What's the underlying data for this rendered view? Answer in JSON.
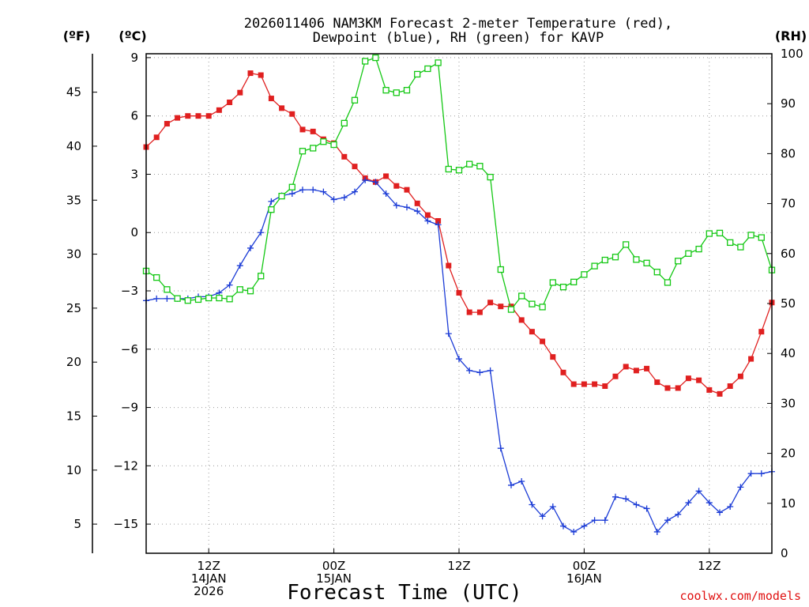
{
  "chart_data": {
    "type": "line",
    "title_line1": "2026011406 NAM3KM Forecast 2-meter Temperature (red),",
    "title_line2": "Dewpoint (blue), RH (green) for KAVP",
    "xlabel": "Forecast Time (UTC)",
    "units": {
      "fahrenheit": "(ºF)",
      "celsius": "(ºC)",
      "rh": "(RH)"
    },
    "x_range_hours": [
      0,
      60
    ],
    "c_range": [
      -16.5,
      9.2
    ],
    "rh_range": [
      0,
      100
    ],
    "f_ticks": [
      5,
      10,
      15,
      20,
      25,
      30,
      35,
      40,
      45
    ],
    "c_ticks": [
      -15,
      -12,
      -9,
      -6,
      -3,
      0,
      3,
      6,
      9
    ],
    "rh_ticks": [
      0,
      10,
      20,
      30,
      40,
      50,
      60,
      70,
      80,
      90,
      100
    ],
    "x_ticks": [
      {
        "hour": 6,
        "lines": [
          "12Z",
          "14JAN",
          "2026"
        ]
      },
      {
        "hour": 18,
        "lines": [
          "00Z",
          "15JAN"
        ]
      },
      {
        "hour": 30,
        "lines": [
          "12Z"
        ]
      },
      {
        "hour": 42,
        "lines": [
          "00Z",
          "16JAN"
        ]
      },
      {
        "hour": 54,
        "lines": [
          "12Z"
        ]
      }
    ],
    "series": [
      {
        "name": "2-meter Temperature",
        "unit": "C",
        "color": "#e02020",
        "marker": "filled-square",
        "x": [
          0,
          1,
          2,
          3,
          4,
          5,
          6,
          7,
          8,
          9,
          10,
          11,
          12,
          13,
          14,
          15,
          16,
          17,
          18,
          19,
          20,
          21,
          22,
          23,
          24,
          25,
          26,
          27,
          28,
          29,
          30,
          31,
          32,
          33,
          34,
          35,
          36,
          37,
          38,
          39,
          40,
          41,
          42,
          43,
          44,
          45,
          46,
          47,
          48,
          49,
          50,
          51,
          52,
          53,
          54,
          55,
          56,
          57,
          58,
          59,
          60
        ],
        "values": [
          4.4,
          4.9,
          5.6,
          5.9,
          6.0,
          6.0,
          6.0,
          6.3,
          6.7,
          7.2,
          8.2,
          8.1,
          6.9,
          6.4,
          6.1,
          5.3,
          5.2,
          4.8,
          4.6,
          3.9,
          3.4,
          2.8,
          2.6,
          2.9,
          2.4,
          2.2,
          1.5,
          0.9,
          0.6,
          -1.7,
          -3.1,
          -4.1,
          -4.1,
          -3.6,
          -3.8,
          -3.8,
          -4.5,
          -5.1,
          -5.6,
          -6.4,
          -7.2,
          -7.8,
          -7.8,
          -7.8,
          -7.9,
          -7.4,
          -6.9,
          -7.1,
          -7.0,
          -7.7,
          -8.0,
          -8.0,
          -7.5,
          -7.6,
          -8.1,
          -8.3,
          -7.9,
          -7.4,
          -6.5,
          -5.1,
          -3.6
        ]
      },
      {
        "name": "Dewpoint",
        "unit": "C",
        "color": "#1c3cd6",
        "marker": "plus",
        "x": [
          0,
          1,
          2,
          3,
          4,
          5,
          6,
          7,
          8,
          9,
          10,
          11,
          12,
          13,
          14,
          15,
          16,
          17,
          18,
          19,
          20,
          21,
          22,
          23,
          24,
          25,
          26,
          27,
          28,
          29,
          30,
          31,
          32,
          33,
          34,
          35,
          36,
          37,
          38,
          39,
          40,
          41,
          42,
          43,
          44,
          45,
          46,
          47,
          48,
          49,
          50,
          51,
          52,
          53,
          54,
          55,
          56,
          57,
          58,
          59,
          60
        ],
        "values": [
          -3.5,
          -3.4,
          -3.4,
          -3.4,
          -3.4,
          -3.3,
          -3.3,
          -3.1,
          -2.7,
          -1.7,
          -0.8,
          0.0,
          1.6,
          1.9,
          2.0,
          2.2,
          2.2,
          2.1,
          1.7,
          1.8,
          2.1,
          2.7,
          2.6,
          2.0,
          1.4,
          1.3,
          1.1,
          0.6,
          0.4,
          -5.2,
          -6.5,
          -7.1,
          -7.2,
          -7.1,
          -11.1,
          -13.0,
          -12.8,
          -14.0,
          -14.6,
          -14.1,
          -15.1,
          -15.4,
          -15.1,
          -14.8,
          -14.8,
          -13.6,
          -13.7,
          -14.0,
          -14.2,
          -15.4,
          -14.8,
          -14.5,
          -13.9,
          -13.3,
          -13.9,
          -14.4,
          -14.1,
          -13.1,
          -12.4,
          -12.4,
          -12.3
        ]
      },
      {
        "name": "RH",
        "unit": "%",
        "color": "#14c814",
        "marker": "open-square",
        "x": [
          0,
          1,
          2,
          3,
          4,
          5,
          6,
          7,
          8,
          9,
          10,
          11,
          12,
          13,
          14,
          15,
          16,
          17,
          18,
          19,
          20,
          21,
          22,
          23,
          24,
          25,
          26,
          27,
          28,
          29,
          30,
          31,
          32,
          33,
          34,
          35,
          36,
          37,
          38,
          39,
          40,
          41,
          42,
          43,
          44,
          45,
          46,
          47,
          48,
          49,
          50,
          51,
          52,
          53,
          54,
          55,
          56,
          57,
          58,
          59,
          60
        ],
        "values": [
          56.5,
          55.2,
          52.8,
          51.0,
          50.6,
          50.8,
          51.1,
          51.1,
          50.9,
          52.8,
          52.5,
          55.5,
          68.8,
          71.5,
          73.3,
          80.5,
          81.1,
          82.4,
          81.8,
          86.1,
          90.7,
          98.5,
          99.2,
          92.7,
          92.2,
          92.7,
          95.9,
          97.0,
          98.2,
          76.9,
          76.7,
          77.9,
          77.5,
          75.3,
          56.8,
          48.8,
          51.5,
          49.9,
          49.3,
          54.2,
          53.3,
          54.3,
          55.8,
          57.5,
          58.7,
          59.3,
          61.8,
          58.8,
          58.1,
          56.3,
          54.2,
          58.5,
          60.0,
          60.9,
          64.0,
          64.1,
          62.2,
          61.3,
          63.7,
          63.2,
          56.7
        ]
      }
    ],
    "credit": "coolwx.com/models"
  }
}
